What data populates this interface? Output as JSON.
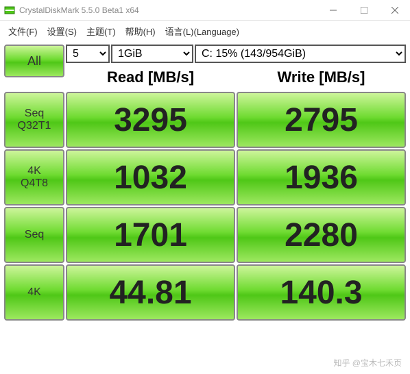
{
  "window": {
    "title": "CrystalDiskMark 5.5.0 Beta1 x64"
  },
  "menu": {
    "file": "文件(F)",
    "settings": "设置(S)",
    "theme": "主题(T)",
    "help": "帮助(H)",
    "language": "语言(L)(Language)"
  },
  "controls": {
    "all": "All",
    "runs": "5",
    "size": "1GiB",
    "drive": "C: 15% (143/954GiB)"
  },
  "headers": {
    "read": "Read [MB/s]",
    "write": "Write [MB/s]"
  },
  "rows": [
    {
      "label1": "Seq",
      "label2": "Q32T1",
      "read": "3295",
      "write": "2795"
    },
    {
      "label1": "4K",
      "label2": "Q4T8",
      "read": "1032",
      "write": "1936"
    },
    {
      "label1": "Seq",
      "label2": "",
      "read": "1701",
      "write": "2280"
    },
    {
      "label1": "4K",
      "label2": "",
      "read": "44.81",
      "write": "140.3"
    }
  ],
  "footer": "知乎 @宝木七禾页",
  "colors": {
    "gradient_top": "#cdf59a",
    "gradient_mid1": "#6fdb31",
    "gradient_mid2": "#4fc717",
    "gradient_bottom": "#9de85f",
    "border": "#888888"
  }
}
